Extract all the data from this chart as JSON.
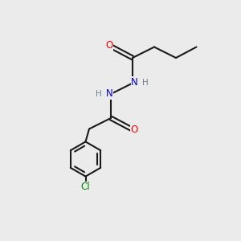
{
  "background_color": "#ebebeb",
  "bond_color": "#1a1a1a",
  "N_color": "#0000cc",
  "O_color": "#ff0000",
  "Cl_color": "#008800",
  "H_color": "#708090",
  "bond_width": 1.5,
  "figsize": [
    3.0,
    3.0
  ],
  "dpi": 100,
  "xlim": [
    0,
    10
  ],
  "ylim": [
    0,
    10
  ],
  "font_size": 8.5
}
